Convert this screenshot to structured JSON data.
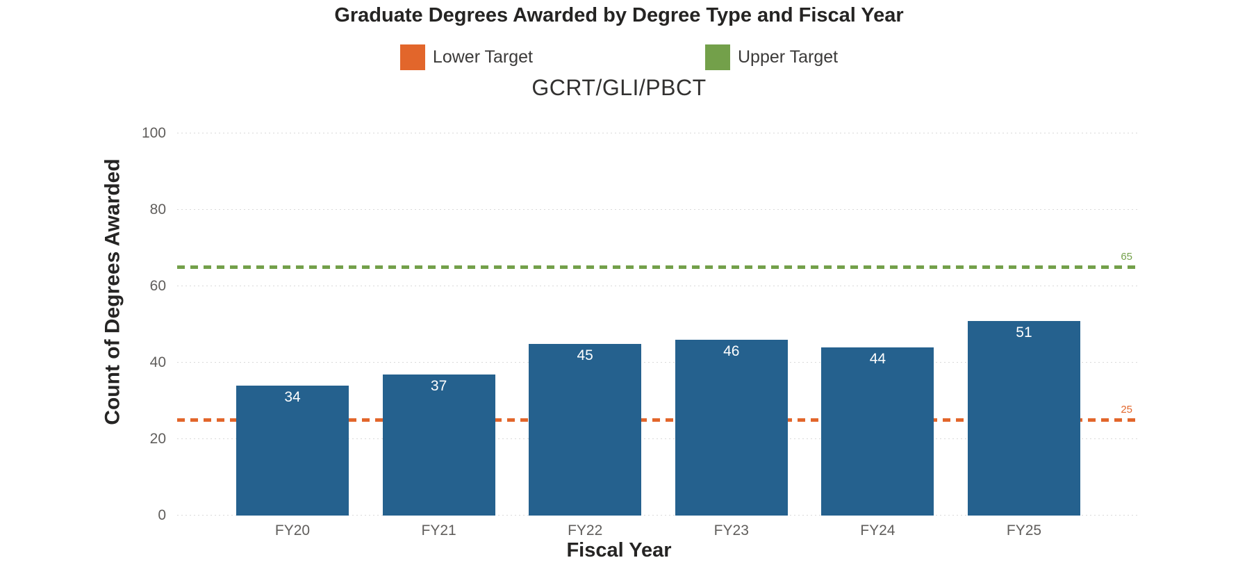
{
  "title": "Graduate Degrees Awarded by Degree Type and Fiscal Year",
  "legend": {
    "items": [
      {
        "label": "Lower Target",
        "color": "#E2662B"
      },
      {
        "label": "Upper Target",
        "color": "#73A04A"
      }
    ]
  },
  "chart_data": {
    "type": "bar",
    "title": "GCRT/GLI/PBCT",
    "xlabel": "Fiscal Year",
    "ylabel": "Count of Degrees Awarded",
    "categories": [
      "FY20",
      "FY21",
      "FY22",
      "FY23",
      "FY24",
      "FY25"
    ],
    "values": [
      34,
      37,
      45,
      46,
      44,
      51
    ],
    "ylim": [
      0,
      100
    ],
    "yticks": [
      0,
      20,
      40,
      60,
      80,
      100
    ],
    "grid": true,
    "gridline_color": "#D9D9D9",
    "bar_color": "#25618E",
    "bar_label_color": "#FFFFFF",
    "reference_lines": [
      {
        "name": "Lower Target",
        "value": 25,
        "label": "25",
        "color": "#E2662B",
        "style": "dotted",
        "label_position": "right-above"
      },
      {
        "name": "Upper Target",
        "value": 65,
        "label": "65",
        "color": "#73A04A",
        "style": "dotted",
        "label_position": "right-above"
      }
    ]
  }
}
